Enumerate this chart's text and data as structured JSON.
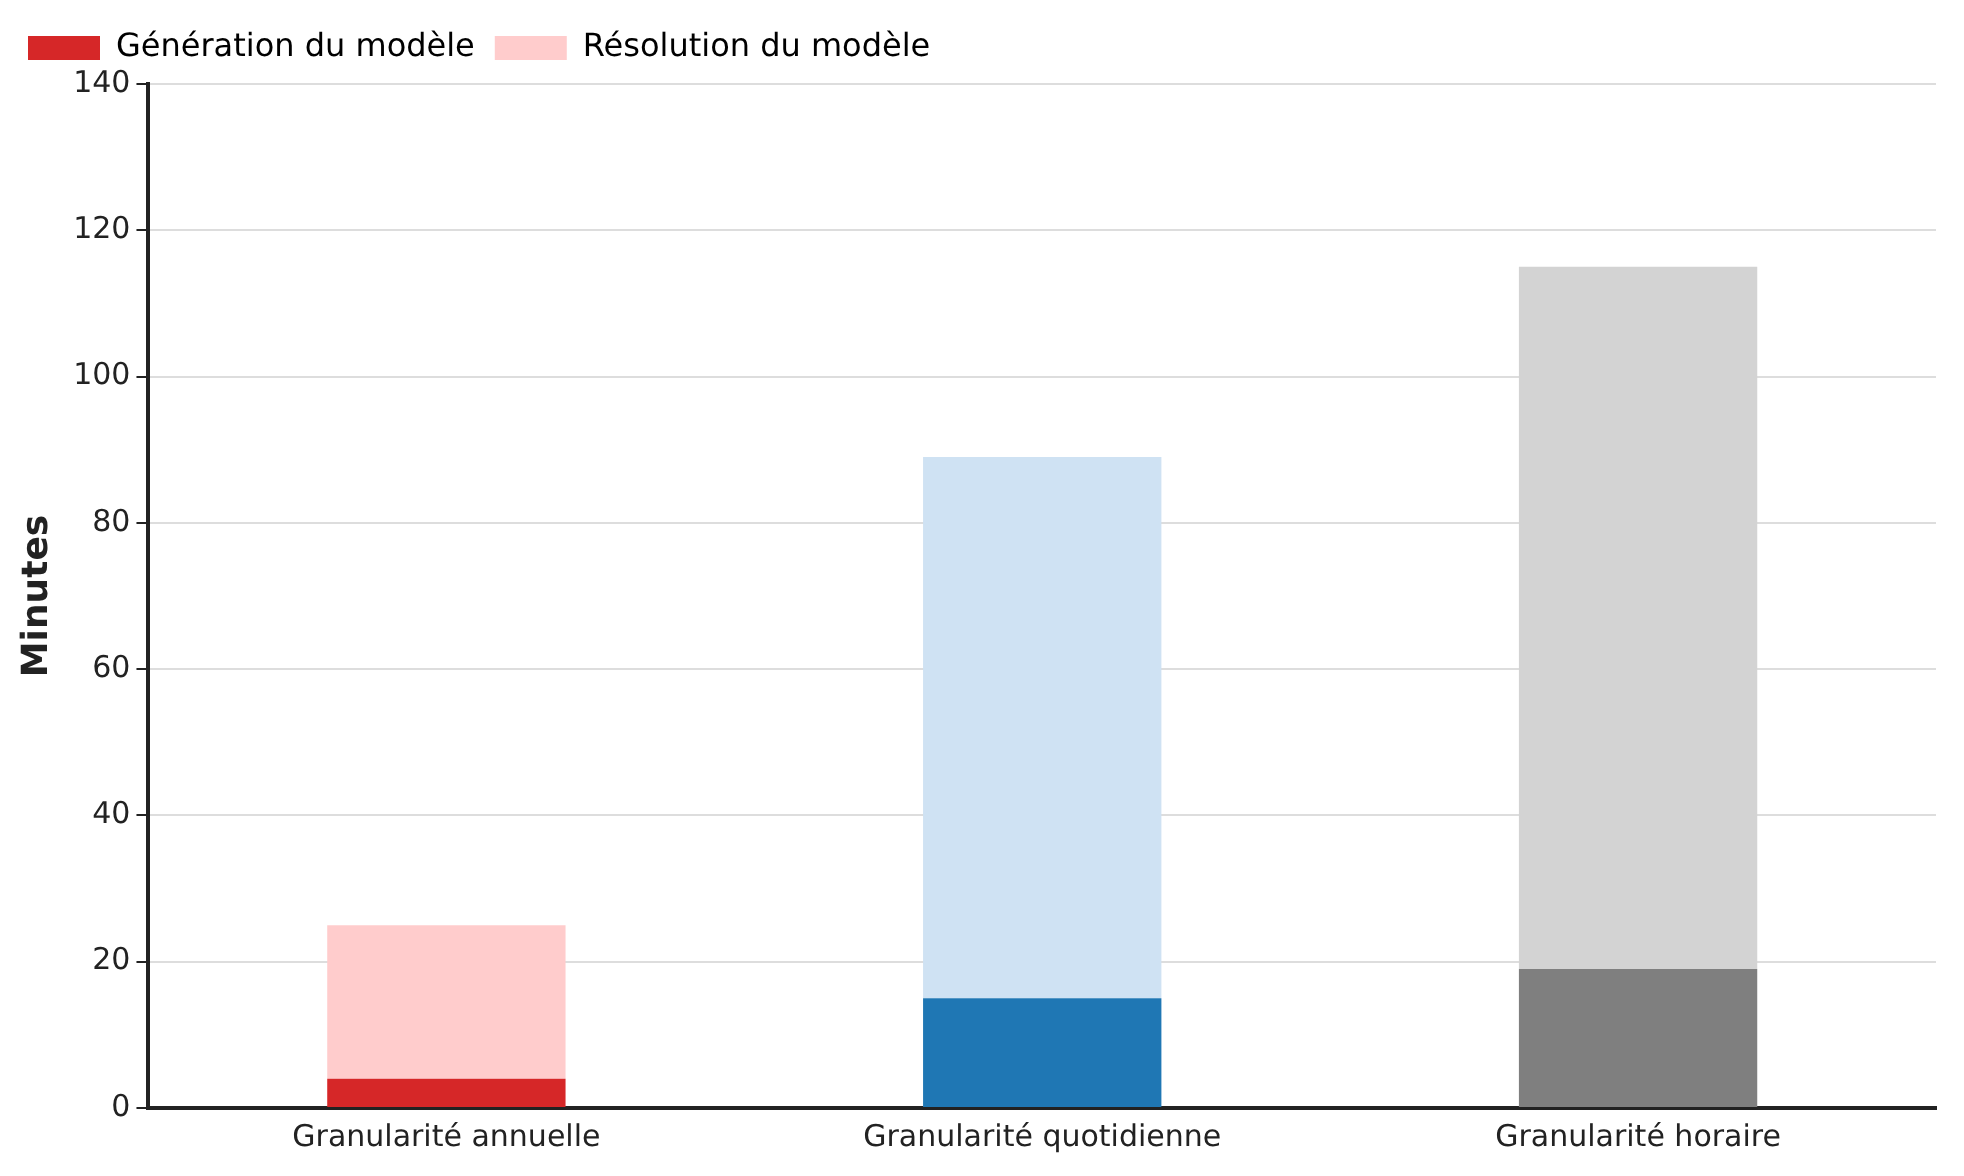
{
  "chart_data": {
    "type": "bar",
    "stacked": true,
    "ylabel": "Minutes",
    "categories": [
      "Granularité annuelle",
      "Granularité quotidienne",
      "Granularité horaire"
    ],
    "series": [
      {
        "name": "Génération du modèle",
        "colors": [
          "#d62728",
          "#1f77b4",
          "#7f7f7f"
        ],
        "values": [
          4,
          15,
          19
        ]
      },
      {
        "name": "Résolution du modèle",
        "colors": [
          "#ffcccc",
          "#cfe2f3",
          "#d3d3d3"
        ],
        "values": [
          21,
          74,
          96
        ]
      }
    ],
    "ylim": [
      0,
      140
    ],
    "yticks": [
      0,
      20,
      40,
      60,
      80,
      100,
      120,
      140
    ],
    "grid": "y",
    "legend": "top left"
  }
}
